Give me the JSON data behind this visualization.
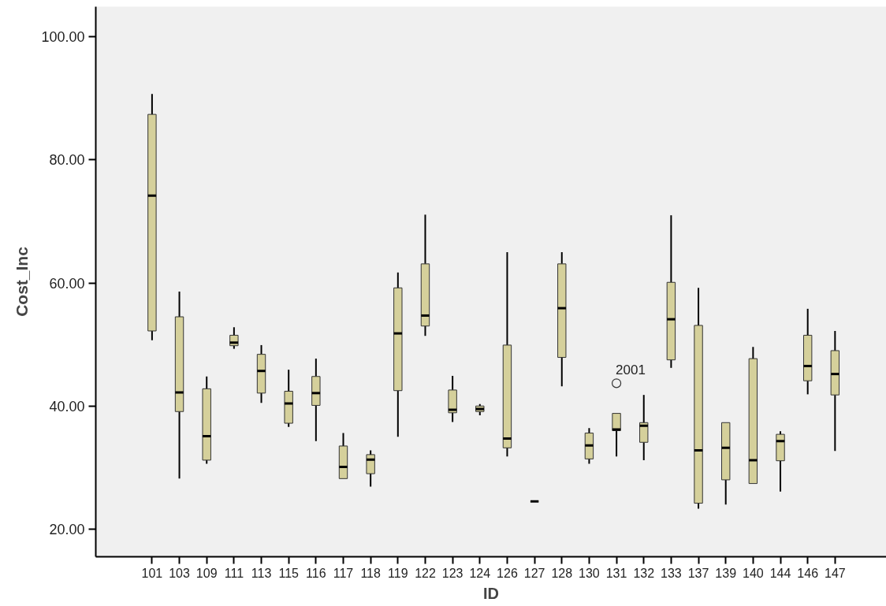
{
  "chart_data": {
    "type": "box",
    "xlabel": "ID",
    "ylabel": "Cost_Inc",
    "categories": [
      "101",
      "103",
      "109",
      "111",
      "113",
      "115",
      "116",
      "117",
      "118",
      "119",
      "122",
      "123",
      "124",
      "126",
      "127",
      "128",
      "130",
      "131",
      "132",
      "133",
      "137",
      "139",
      "140",
      "144",
      "146",
      "147"
    ],
    "boxes": [
      {
        "low": 50.7,
        "q1": 52.2,
        "median": 74.2,
        "q3": 87.4,
        "high": 90.7
      },
      {
        "low": 28.2,
        "q1": 39.1,
        "median": 42.2,
        "q3": 54.5,
        "high": 58.6
      },
      {
        "low": 30.6,
        "q1": 31.2,
        "median": 35.1,
        "q3": 42.8,
        "high": 44.8
      },
      {
        "low": 49.3,
        "q1": 49.8,
        "median": 50.3,
        "q3": 51.5,
        "high": 52.8
      },
      {
        "low": 40.5,
        "q1": 42.1,
        "median": 45.7,
        "q3": 48.4,
        "high": 49.9
      },
      {
        "low": 36.6,
        "q1": 37.2,
        "median": 40.4,
        "q3": 42.4,
        "high": 45.9
      },
      {
        "low": 34.3,
        "q1": 40.1,
        "median": 42.1,
        "q3": 44.8,
        "high": 47.7
      },
      {
        "low": 28.2,
        "q1": 28.2,
        "median": 30.1,
        "q3": 33.5,
        "high": 35.6
      },
      {
        "low": 26.9,
        "q1": 29.0,
        "median": 31.3,
        "q3": 32.1,
        "high": 32.8
      },
      {
        "low": 35.0,
        "q1": 42.5,
        "median": 51.8,
        "q3": 59.2,
        "high": 61.7
      },
      {
        "low": 51.4,
        "q1": 53.0,
        "median": 54.7,
        "q3": 63.1,
        "high": 71.1
      },
      {
        "low": 37.4,
        "q1": 38.9,
        "median": 39.4,
        "q3": 42.6,
        "high": 44.9
      },
      {
        "low": 38.5,
        "q1": 39.1,
        "median": 39.5,
        "q3": 40.0,
        "high": 40.3
      },
      {
        "low": 31.8,
        "q1": 33.2,
        "median": 34.7,
        "q3": 49.9,
        "high": 65.0
      },
      {
        "low": 24.5,
        "q1": 24.5,
        "median": 24.5,
        "q3": 24.5,
        "high": 24.5
      },
      {
        "low": 43.2,
        "q1": 47.9,
        "median": 55.9,
        "q3": 63.1,
        "high": 65.0
      },
      {
        "low": 30.6,
        "q1": 31.4,
        "median": 33.6,
        "q3": 35.6,
        "high": 36.4
      },
      {
        "low": 31.8,
        "q1": 36.0,
        "median": 36.2,
        "q3": 38.8,
        "high": 38.8,
        "outliers": [
          43.7
        ]
      },
      {
        "low": 31.2,
        "q1": 34.1,
        "median": 36.8,
        "q3": 37.3,
        "high": 41.8
      },
      {
        "low": 46.2,
        "q1": 47.5,
        "median": 54.1,
        "q3": 60.1,
        "high": 71.0
      },
      {
        "low": 23.3,
        "q1": 24.2,
        "median": 32.8,
        "q3": 53.1,
        "high": 59.2
      },
      {
        "low": 24.0,
        "q1": 28.0,
        "median": 33.2,
        "q3": 37.3,
        "high": 37.3
      },
      {
        "low": 27.4,
        "q1": 27.4,
        "median": 31.2,
        "q3": 47.7,
        "high": 49.6
      },
      {
        "low": 26.1,
        "q1": 31.1,
        "median": 34.3,
        "q3": 35.4,
        "high": 35.9
      },
      {
        "low": 41.9,
        "q1": 44.1,
        "median": 46.5,
        "q3": 51.5,
        "high": 55.8
      },
      {
        "low": 32.7,
        "q1": 41.8,
        "median": 45.2,
        "q3": 49.0,
        "high": 52.2
      }
    ],
    "color": "#d5d09b",
    "marker": "circle",
    "ylim": [
      15.5,
      104.9
    ],
    "yticks": [
      {
        "value": 20,
        "label": "20.00"
      },
      {
        "value": 40,
        "label": "40.00"
      },
      {
        "value": 60,
        "label": "60.00"
      },
      {
        "value": 80,
        "label": "80.00"
      },
      {
        "value": 100,
        "label": "100.00"
      }
    ],
    "annotations": [
      "2001"
    ]
  }
}
